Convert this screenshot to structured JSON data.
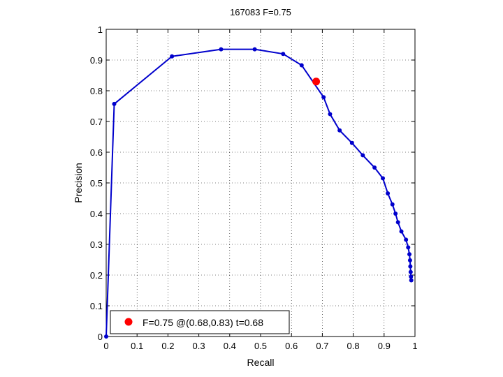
{
  "chart_data": {
    "type": "line",
    "title": "167083 F=0.75",
    "xlabel": "Recall",
    "ylabel": "Precision",
    "xlim": [
      0,
      1
    ],
    "ylim": [
      0,
      1
    ],
    "grid": true,
    "legend_position": "bottom-left",
    "xticks": [
      "0",
      "0.1",
      "0.2",
      "0.3",
      "0.4",
      "0.5",
      "0.6",
      "0.7",
      "0.8",
      "0.9",
      "1"
    ],
    "yticks": [
      "0",
      "0.1",
      "0.2",
      "0.3",
      "0.4",
      "0.5",
      "0.6",
      "0.7",
      "0.8",
      "0.9",
      "1"
    ],
    "series": [
      {
        "color": "#0000cc",
        "points": [
          [
            0.0,
            0.0
          ],
          [
            0.026,
            0.757
          ],
          [
            0.213,
            0.912
          ],
          [
            0.372,
            0.935
          ],
          [
            0.481,
            0.935
          ],
          [
            0.573,
            0.92
          ],
          [
            0.633,
            0.883
          ],
          [
            0.704,
            0.779
          ],
          [
            0.725,
            0.724
          ],
          [
            0.756,
            0.671
          ],
          [
            0.796,
            0.63
          ],
          [
            0.831,
            0.59
          ],
          [
            0.869,
            0.55
          ],
          [
            0.896,
            0.515
          ],
          [
            0.912,
            0.466
          ],
          [
            0.927,
            0.43
          ],
          [
            0.937,
            0.4
          ],
          [
            0.945,
            0.372
          ],
          [
            0.956,
            0.342
          ],
          [
            0.971,
            0.315
          ],
          [
            0.978,
            0.29
          ],
          [
            0.982,
            0.268
          ],
          [
            0.984,
            0.248
          ],
          [
            0.985,
            0.228
          ],
          [
            0.986,
            0.21
          ],
          [
            0.987,
            0.195
          ],
          [
            0.988,
            0.183
          ]
        ]
      }
    ],
    "best_point": {
      "x": 0.68,
      "y": 0.83,
      "color": "#ff0000",
      "legend_label": "F=0.75 @(0.68,0.83) t=0.68"
    }
  }
}
